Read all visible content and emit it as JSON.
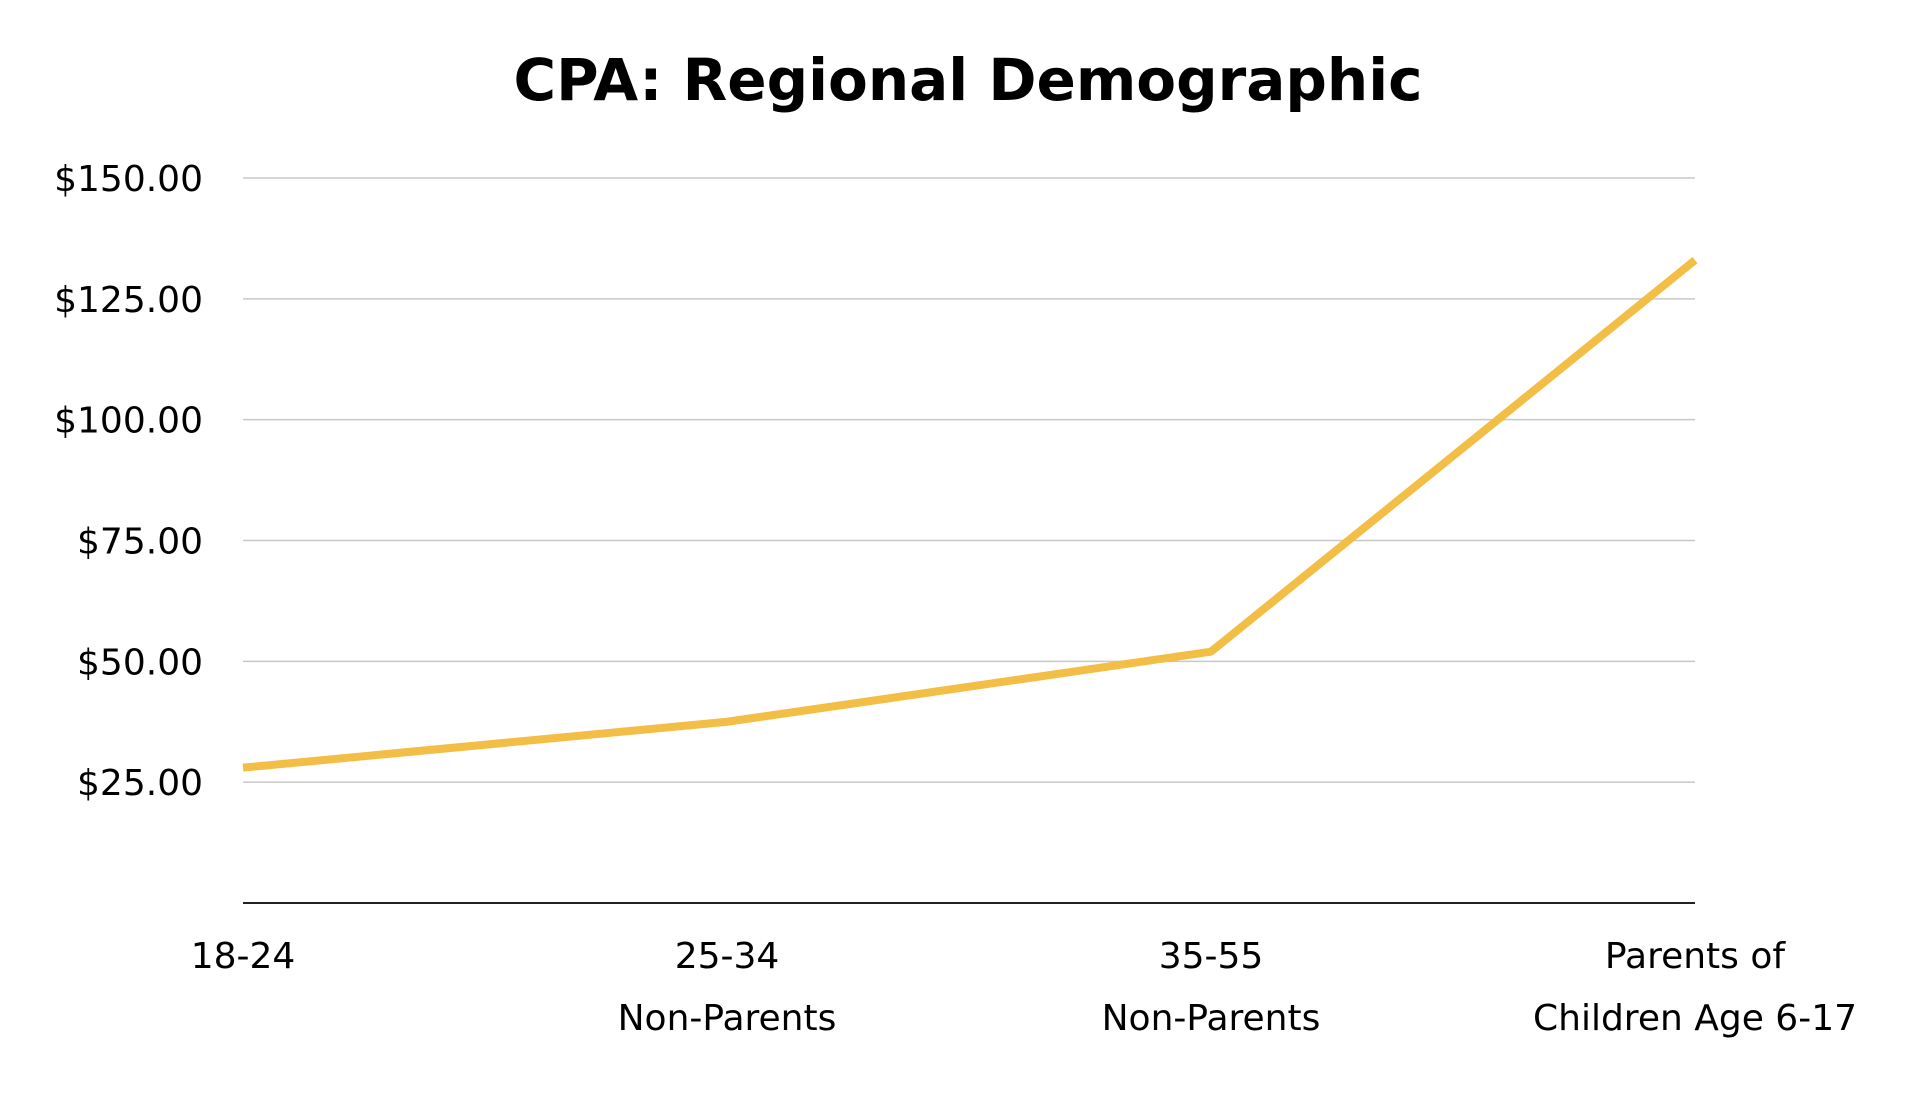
{
  "chart_data": {
    "type": "line",
    "title": "CPA: Regional Demographic",
    "xlabel": "",
    "ylabel": "",
    "categories": [
      [
        "18-24"
      ],
      [
        "25-34",
        "Non-Parents"
      ],
      [
        "35-55",
        "Non-Parents"
      ],
      [
        "Parents of",
        "Children Age 6-17"
      ]
    ],
    "series": [
      {
        "name": "CPA",
        "values": [
          28,
          37.5,
          52,
          133
        ],
        "color": "#F2BE45"
      }
    ],
    "ylim": [
      0,
      150
    ],
    "yticks": [
      25,
      50,
      75,
      100,
      125,
      150
    ],
    "ytick_labels": [
      "$25.00",
      "$50.00",
      "$75.00",
      "$100.00",
      "$125.00",
      "$150.00"
    ],
    "grid": true,
    "legend": "none"
  }
}
